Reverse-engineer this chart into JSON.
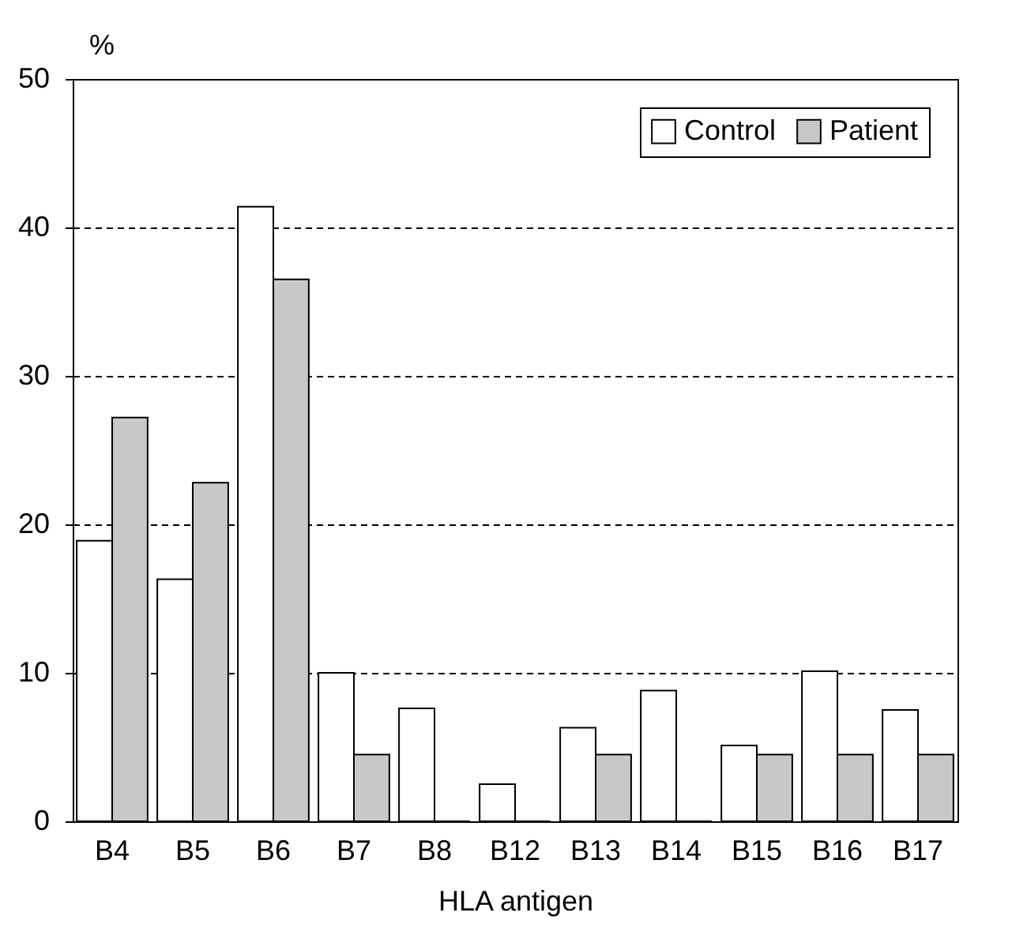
{
  "chart_data": {
    "type": "bar",
    "xlabel": "HLA antigen",
    "ylabel": "%",
    "categories": [
      "B4",
      "B5",
      "B6",
      "B7",
      "B8",
      "B12",
      "B13",
      "B14",
      "B15",
      "B16",
      "B17"
    ],
    "series": [
      {
        "name": "Control",
        "color": "#ffffff",
        "values": [
          18.9,
          16.3,
          41.4,
          10.0,
          7.6,
          2.5,
          6.3,
          8.8,
          5.1,
          10.1,
          7.5
        ]
      },
      {
        "name": "Patient",
        "color": "#c8c8c8",
        "values": [
          27.2,
          22.8,
          36.5,
          4.5,
          0,
          0,
          4.5,
          0,
          4.5,
          4.5,
          4.5
        ]
      }
    ],
    "ylim": [
      0,
      50
    ],
    "yticks": [
      0,
      10,
      20,
      30,
      40,
      50
    ],
    "grid": "y",
    "legend": "top right"
  }
}
